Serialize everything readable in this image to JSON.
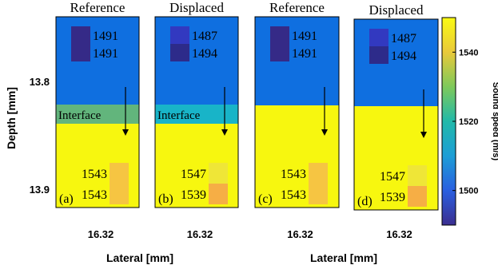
{
  "chart_data": {
    "type": "heatmap",
    "ylabel": "Depth [mm]",
    "xlabel": "Lateral [mm]",
    "y_ticks": [
      "13.8",
      "13.9"
    ],
    "x_ticks": [
      "16.32",
      "16.32",
      "16.32",
      "16.32"
    ],
    "colorbar": {
      "label": "Sound speed (m/s)",
      "range": [
        1490,
        1550
      ],
      "ticks": [
        "1500",
        "1520",
        "1540"
      ],
      "colors": [
        "#3b2e8f",
        "#2a5fe0",
        "#1d9ed6",
        "#21b9a9",
        "#7ec95a",
        "#e9c93a",
        "#fafa14"
      ]
    },
    "panels": [
      {
        "title": "Reference",
        "tag": "(a)",
        "interface_label": "Interface",
        "interface_color": "#62b57c",
        "top_color": "#0f6fe0",
        "bottom_color": "#f7f70f",
        "top_values": [
          "1491",
          "1491"
        ],
        "top_colors": [
          "#352a87",
          "#352a87"
        ],
        "bottom_values": [
          "1543",
          "1543"
        ],
        "bottom_colors": [
          "#f6c542",
          "#f6c542"
        ]
      },
      {
        "title": "Displaced",
        "tag": "(b)",
        "interface_label": "Interface",
        "interface_color": "#18b4c8",
        "top_color": "#0f6fe0",
        "bottom_color": "#f7f70f",
        "top_values": [
          "1487",
          "1494"
        ],
        "top_colors": [
          "#3239c0",
          "#2d2b8a"
        ],
        "bottom_values": [
          "1547",
          "1539"
        ],
        "bottom_colors": [
          "#efe637",
          "#f6ae45"
        ]
      },
      {
        "title": "Reference",
        "tag": "(c)",
        "interface_label": "",
        "interface_color": "",
        "top_color": "#0f6fe0",
        "bottom_color": "#f7f70f",
        "top_values": [
          "1491",
          "1491"
        ],
        "top_colors": [
          "#352a87",
          "#352a87"
        ],
        "bottom_values": [
          "1543",
          "1543"
        ],
        "bottom_colors": [
          "#f6c542",
          "#f6c542"
        ]
      },
      {
        "title": "Displaced",
        "tag": "(d)",
        "interface_label": "",
        "interface_color": "",
        "top_color": "#0f6fe0",
        "bottom_color": "#f7f70f",
        "top_values": [
          "1487",
          "1494"
        ],
        "top_colors": [
          "#3239c0",
          "#2d2b8a"
        ],
        "bottom_values": [
          "1547",
          "1539"
        ],
        "bottom_colors": [
          "#efe637",
          "#f6ae45"
        ]
      }
    ]
  }
}
